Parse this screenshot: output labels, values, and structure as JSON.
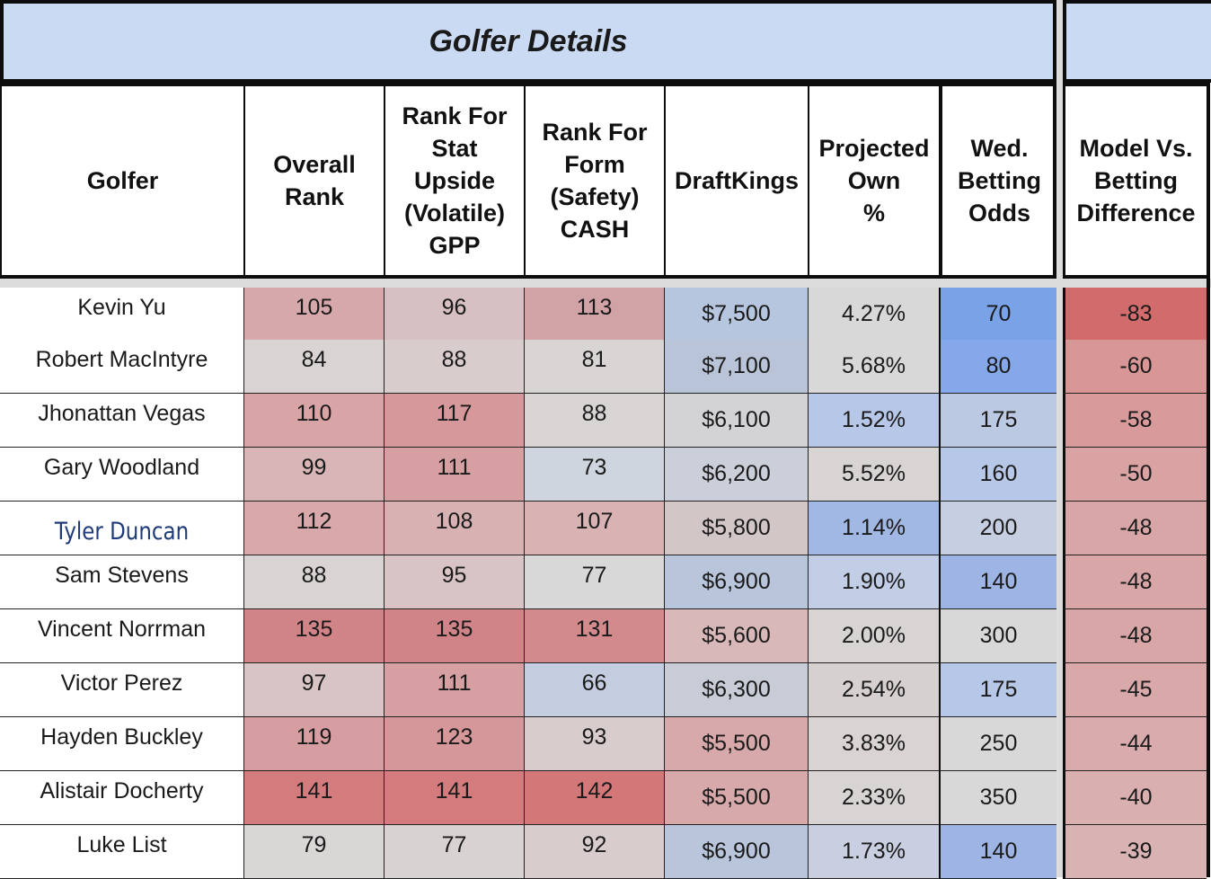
{
  "sheet": {
    "banner_title": "Golfer Details",
    "columns": [
      {
        "key": "golfer",
        "label": "Golfer"
      },
      {
        "key": "overall",
        "label": "Overall\nRank"
      },
      {
        "key": "stat",
        "label": "Rank For\nStat\nUpside\n(Volatile)\nGPP"
      },
      {
        "key": "form",
        "label": "Rank For\nForm\n(Safety)\nCASH"
      },
      {
        "key": "dk",
        "label": "DraftKings"
      },
      {
        "key": "own",
        "label": "Projected\nOwn\n%"
      },
      {
        "key": "odds",
        "label": "Wed.\nBetting\nOdds"
      },
      {
        "key": "diff",
        "label": "Model Vs.\nBetting\nDifference"
      }
    ],
    "rows": [
      {
        "golfer": "Kevin Yu",
        "overall": "105",
        "stat": "96",
        "form": "113",
        "dk": "$7,500",
        "own": "4.27%",
        "odds": "70",
        "diff": "-83"
      },
      {
        "golfer": "Robert MacIntyre",
        "overall": "84",
        "stat": "88",
        "form": "81",
        "dk": "$7,100",
        "own": "5.68%",
        "odds": "80",
        "diff": "-60"
      },
      {
        "golfer": "Jhonattan Vegas",
        "overall": "110",
        "stat": "117",
        "form": "88",
        "dk": "$6,100",
        "own": "1.52%",
        "odds": "175",
        "diff": "-58"
      },
      {
        "golfer": "Gary Woodland",
        "overall": "99",
        "stat": "111",
        "form": "73",
        "dk": "$6,200",
        "own": "5.52%",
        "odds": "160",
        "diff": "-50"
      },
      {
        "golfer": "Tyler Duncan",
        "overall": "112",
        "stat": "108",
        "form": "107",
        "dk": "$5,800",
        "own": "1.14%",
        "odds": "200",
        "diff": "-48"
      },
      {
        "golfer": "Sam Stevens",
        "overall": "88",
        "stat": "95",
        "form": "77",
        "dk": "$6,900",
        "own": "1.90%",
        "odds": "140",
        "diff": "-48"
      },
      {
        "golfer": "Vincent Norrman",
        "overall": "135",
        "stat": "135",
        "form": "131",
        "dk": "$5,600",
        "own": "2.00%",
        "odds": "300",
        "diff": "-48"
      },
      {
        "golfer": "Victor Perez",
        "overall": "97",
        "stat": "111",
        "form": "66",
        "dk": "$6,300",
        "own": "2.54%",
        "odds": "175",
        "diff": "-45"
      },
      {
        "golfer": "Hayden Buckley",
        "overall": "119",
        "stat": "123",
        "form": "93",
        "dk": "$5,500",
        "own": "3.83%",
        "odds": "250",
        "diff": "-44"
      },
      {
        "golfer": "Alistair Docherty",
        "overall": "141",
        "stat": "141",
        "form": "142",
        "dk": "$5,500",
        "own": "2.33%",
        "odds": "350",
        "diff": "-40"
      },
      {
        "golfer": "Luke List",
        "overall": "79",
        "stat": "77",
        "form": "92",
        "dk": "$6,900",
        "own": "1.73%",
        "odds": "140",
        "diff": "-39"
      }
    ],
    "cell_colors": [
      {
        "overall": "#d7a8ab",
        "stat": "#d6c0c2",
        "form": "#d2a3a6",
        "dk": "#b7c6df",
        "own": "#d8d8d8",
        "odds": "#7aa2e6",
        "diff": "#d26b6b"
      },
      {
        "overall": "#d9d3d3",
        "stat": "#d8cccd",
        "form": "#d9d4d4",
        "dk": "#b9c4d8",
        "own": "#d8d8d8",
        "odds": "#84a8ea",
        "diff": "#d89697"
      },
      {
        "overall": "#d8a4a6",
        "stat": "#d6989a",
        "form": "#d9d4d4",
        "dk": "#d3d3d6",
        "own": "#b7c7e7",
        "odds": "#bcc9e3",
        "diff": "#d99a9b"
      },
      {
        "overall": "#d8b5b7",
        "stat": "#d6a0a3",
        "form": "#cfd5df",
        "dk": "#cbcfd9",
        "own": "#d9d4d4",
        "odds": "#b7c7e7",
        "diff": "#d9a2a3"
      },
      {
        "overall": "#d8a8aa",
        "stat": "#d8b1b3",
        "form": "#d9b2b4",
        "dk": "#d3c6c7",
        "own": "#a2b8e4",
        "odds": "#c6cfe2",
        "diff": "#d9a6a7"
      },
      {
        "overall": "#d9d3d3",
        "stat": "#d8c4c5",
        "form": "#d8d8d8",
        "dk": "#b9c5db",
        "own": "#c2cde6",
        "odds": "#9db4e4",
        "diff": "#d9a6a7"
      },
      {
        "overall": "#d18487",
        "stat": "#d18487",
        "form": "#d38a8c",
        "dk": "#d8b8b9",
        "own": "#d8d4d4",
        "odds": "#d8d8d8",
        "diff": "#d9a6a7"
      },
      {
        "overall": "#d8c4c5",
        "stat": "#d6a0a3",
        "form": "#c4cde0",
        "dk": "#c7ccd6",
        "own": "#d6d0d0",
        "odds": "#b7c7e7",
        "diff": "#d9a9aa"
      },
      {
        "overall": "#d69ea1",
        "stat": "#d6979a",
        "form": "#d9cccd",
        "dk": "#d8a9ab",
        "own": "#d9d3d3",
        "odds": "#d8d8d8",
        "diff": "#d9abac"
      },
      {
        "overall": "#d37b7d",
        "stat": "#d37b7d",
        "form": "#d47779",
        "dk": "#d8a9ab",
        "own": "#d8d4d4",
        "odds": "#d8d8d8",
        "diff": "#d9afb0"
      },
      {
        "overall": "#d9d6d6",
        "stat": "#d9d2d2",
        "form": "#d9cccd",
        "dk": "#b9c5db",
        "own": "#c9cfe0",
        "odds": "#9db4e4",
        "diff": "#d9b2b3"
      }
    ],
    "highlight_name_color": "#1f3b78"
  }
}
